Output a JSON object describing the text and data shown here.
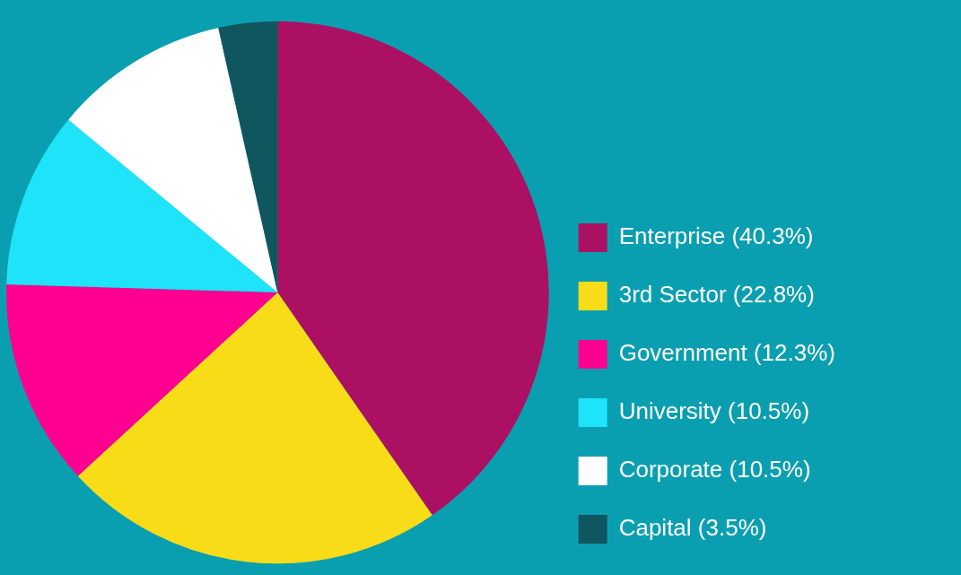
{
  "chart_data": {
    "type": "pie",
    "categories": [
      "Enterprise (40.3%)",
      "3rd Sector (22.8%)",
      "Government (12.3%)",
      "University (10.5%)",
      "Corporate (10.5%)",
      "Capital (3.5%)"
    ],
    "values": [
      40.3,
      22.8,
      12.3,
      10.5,
      10.5,
      3.5
    ],
    "colors": [
      "#ab1063",
      "#f8dc18",
      "#ff0090",
      "#1ee3f9",
      "#ffffff",
      "#10565f"
    ],
    "legend": "bottom right"
  }
}
